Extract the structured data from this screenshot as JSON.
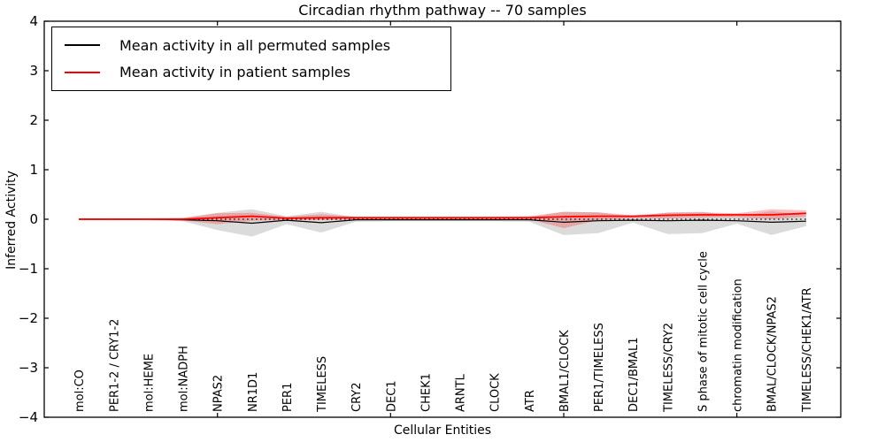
{
  "title": "Circadian rhythm pathway -- 70 samples",
  "legend": {
    "items": [
      {
        "label": "Mean activity in all permuted samples",
        "color": "#000000"
      },
      {
        "label": "Mean activity in patient samples",
        "color": "#ff0000"
      }
    ]
  },
  "colors": {
    "permuted_line": "#000000",
    "patient_line": "#ff0000",
    "permuted_band": "#999999",
    "patient_band": "#ff2a2a",
    "zero_line": "#000000",
    "axis": "#000000"
  },
  "chart_data": {
    "type": "line",
    "title": "Circadian rhythm pathway -- 70 samples",
    "xlabel": "Cellular Entities",
    "ylabel": "Inferred Activity",
    "ylim": [
      -4,
      4
    ],
    "yticks": [
      -4,
      -3,
      -2,
      -1,
      0,
      1,
      2,
      3,
      4
    ],
    "xtick_positions": [
      5,
      10,
      15,
      20
    ],
    "grid": false,
    "legend_position": "upper-left",
    "zero_reference_line": 0,
    "categories": [
      "mol:CO",
      "PER1-2 / CRY1-2",
      "mol:HEME",
      "mol:NADPH",
      "NPAS2",
      "NR1D1",
      "PER1",
      "TIMELESS",
      "CRY2",
      "DEC1",
      "CHEK1",
      "ARNTL",
      "CLOCK",
      "ATR",
      "BMAL1/CLOCK",
      "PER1/TIMELESS",
      "DEC1/BMAL1",
      "TIMELESS/CRY2",
      "S phase of mitotic cell cycle",
      "chromatin modification",
      "BMAL/CLOCK/NPAS2",
      "TIMELESS/CHEK1/ATR"
    ],
    "series": [
      {
        "name": "Mean activity in all permuted samples",
        "kind": "line",
        "color": "#000000",
        "values": [
          0.0,
          0.0,
          0.0,
          -0.01,
          -0.03,
          -0.08,
          -0.02,
          -0.07,
          -0.01,
          -0.01,
          -0.01,
          -0.01,
          -0.01,
          -0.01,
          -0.06,
          -0.03,
          -0.02,
          -0.03,
          -0.02,
          -0.03,
          -0.06,
          -0.04
        ]
      },
      {
        "name": "Mean activity in patient samples",
        "kind": "line",
        "color": "#ff0000",
        "values": [
          0.0,
          0.0,
          0.0,
          0.0,
          0.03,
          0.06,
          0.02,
          0.03,
          0.03,
          0.03,
          0.03,
          0.03,
          0.03,
          0.03,
          0.05,
          0.06,
          0.06,
          0.08,
          0.09,
          0.09,
          0.09,
          0.12
        ]
      },
      {
        "name": "Permuted samples confidence band",
        "kind": "band",
        "color": "#999999",
        "opacity": 0.35,
        "upper": [
          0.02,
          0.02,
          0.02,
          0.03,
          0.13,
          0.2,
          0.06,
          0.15,
          0.04,
          0.03,
          0.03,
          0.03,
          0.03,
          0.04,
          0.15,
          0.14,
          0.05,
          0.14,
          0.15,
          0.06,
          0.16,
          0.08
        ],
        "lower": [
          -0.02,
          -0.02,
          -0.02,
          -0.04,
          -0.22,
          -0.35,
          -0.1,
          -0.27,
          -0.05,
          -0.04,
          -0.04,
          -0.04,
          -0.04,
          -0.05,
          -0.32,
          -0.28,
          -0.07,
          -0.3,
          -0.28,
          -0.09,
          -0.32,
          -0.14
        ]
      },
      {
        "name": "Patient samples confidence band",
        "kind": "band",
        "color": "#ff2a2a",
        "opacity": 0.3,
        "upper": [
          0.01,
          0.01,
          0.01,
          0.02,
          0.12,
          0.13,
          0.05,
          0.1,
          0.05,
          0.05,
          0.05,
          0.05,
          0.05,
          0.06,
          0.15,
          0.14,
          0.08,
          0.13,
          0.14,
          0.12,
          0.2,
          0.18
        ],
        "lower": [
          -0.01,
          -0.01,
          -0.01,
          -0.02,
          -0.1,
          -0.03,
          -0.01,
          -0.02,
          0.0,
          0.0,
          0.0,
          0.0,
          0.0,
          0.0,
          -0.18,
          -0.02,
          0.02,
          0.02,
          0.03,
          0.04,
          0.0,
          0.05
        ]
      }
    ]
  }
}
